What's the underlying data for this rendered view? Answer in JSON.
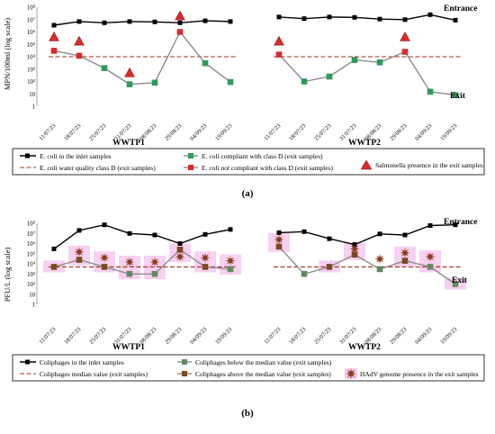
{
  "chart_data": [
    {
      "type": "line",
      "panel_label": "(a)",
      "ylabel": "MPN/100ml (log scale)",
      "yticks": [
        "1",
        "10",
        "10²",
        "10³",
        "10⁴",
        "10⁵",
        "10⁶",
        "10⁷",
        "10⁸"
      ],
      "ylim": [
        1,
        100000000
      ],
      "log_y": true,
      "reference_value": 10000,
      "annotations": {
        "top": "Entrance",
        "bottom": "Exit"
      },
      "colors": {
        "inlet": "#000000",
        "exit_line": "#8c8c8c",
        "compliant": "#2e9b5a",
        "not_compliant": "#d92b2b",
        "reference": "#a0301e",
        "salmonella": "#d92b2b"
      },
      "groups": [
        {
          "name": "WWTP1",
          "dates": [
            "11/07/23",
            "18/07/23",
            "25/07/23",
            "31/07/23",
            "08/08/23",
            "29/08/23",
            "04/09/23",
            "19/09/23"
          ],
          "inlet": [
            3500000,
            7000000,
            5500000,
            7000000,
            6500000,
            5500000,
            8000000,
            7000000
          ],
          "exit": [
            30000,
            12000,
            1200,
            60,
            80,
            1000000,
            3000,
            90
          ],
          "exit_class": [
            "not",
            "not",
            "ok",
            "ok",
            "ok",
            "not",
            "ok",
            "ok"
          ],
          "salmonella": [
            400000,
            180000,
            null,
            500,
            null,
            20000000,
            null,
            null
          ]
        },
        {
          "name": "WWTP2",
          "dates": [
            "11/07/23",
            "18/07/23",
            "25/07/23",
            "31/07/23",
            "08/08/23",
            "29/08/23",
            "04/09/23",
            "19/09/23"
          ],
          "inlet": [
            16000000,
            12000000,
            16000000,
            15000000,
            11000000,
            10000000,
            25000000,
            9000000
          ],
          "exit": [
            15000,
            100,
            250,
            5500,
            3500,
            25000,
            15,
            8
          ],
          "exit_class": [
            "not",
            "ok",
            "ok",
            "ok",
            "ok",
            "not",
            "ok",
            "ok"
          ],
          "salmonella": [
            180000,
            null,
            null,
            null,
            null,
            400000,
            null,
            null
          ]
        }
      ],
      "legend": {
        "inlet": "E. coli in the inlet samples",
        "reference": "E. coli water quality class D (exit samples)",
        "compliant": "E. coli compliant with class D (exit samples)",
        "not_compliant": "E. coli not compliant with class D (exit samples)",
        "presence": "Salmonella presence in the exit samples"
      }
    },
    {
      "type": "line",
      "panel_label": "(b)",
      "ylabel": "PFU/L (log scale)",
      "yticks": [
        "1",
        "10",
        "10²",
        "10³",
        "10⁴",
        "10⁵",
        "10⁶",
        "10⁷",
        "10⁸"
      ],
      "ylim": [
        1,
        100000000
      ],
      "log_y": true,
      "reference_value": 5000,
      "annotations": {
        "top": "Entrance",
        "bottom": "Exit"
      },
      "colors": {
        "inlet": "#000000",
        "exit_line": "#8c8c8c",
        "below": "#5f8a5f",
        "above": "#7a4a1e",
        "reference": "#a0301e",
        "hadv": "#8b3a1a",
        "highlight": "#f7c8ee"
      },
      "groups": [
        {
          "name": "WWTP1",
          "dates": [
            "11/07/23",
            "18/07/23",
            "25/07/23",
            "31/07/23",
            "08/08/23",
            "29/08/23",
            "04/09/23",
            "19/09/23"
          ],
          "inlet": [
            300000,
            20000000,
            70000000,
            10000000,
            7000000,
            1000000,
            8000000,
            25000000
          ],
          "exit": [
            5000,
            25000,
            5000,
            1000,
            1000,
            250000,
            5000,
            3000
          ],
          "exit_class": [
            "above",
            "above",
            "above",
            "below",
            "below",
            "above",
            "above",
            "below"
          ],
          "hadv": [
            null,
            150000,
            40000,
            15000,
            15000,
            50000,
            40000,
            20000
          ],
          "highlight": [
            true,
            true,
            true,
            true,
            true,
            true,
            true,
            true
          ]
        },
        {
          "name": "WWTP2",
          "dates": [
            "11/07/23",
            "18/07/23",
            "25/07/23",
            "31/07/23",
            "08/08/23",
            "29/08/23",
            "04/09/23",
            "19/09/23"
          ],
          "inlet": [
            12000000,
            15000000,
            3000000,
            800000,
            9000000,
            7000000,
            60000000,
            70000000
          ],
          "exit": [
            500000,
            1000,
            5000,
            80000,
            3000,
            20000,
            5000,
            100
          ],
          "exit_class": [
            "above",
            "below",
            "above",
            "above",
            "below",
            "above",
            "below",
            "below"
          ],
          "hadv": [
            2500000,
            null,
            null,
            300000,
            30000,
            120000,
            50000,
            null
          ],
          "highlight": [
            true,
            false,
            true,
            true,
            false,
            true,
            true,
            true
          ]
        }
      ],
      "legend": {
        "inlet": "Coliphages in the inlet samples",
        "reference": "Coliphages median value (exit samples)",
        "below": "Coliphages below the median value (exit samples)",
        "above": "Coliphages above the median value (exit samples)",
        "presence": "HAdV genome presence in the exit samples"
      }
    }
  ]
}
